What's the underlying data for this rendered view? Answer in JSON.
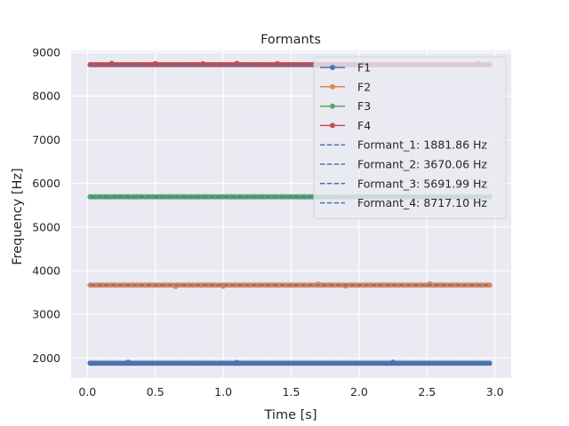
{
  "chart_data": {
    "type": "line",
    "title": "Formants",
    "xlabel": "Time [s]",
    "ylabel": "Frequency [Hz]",
    "xlim": [
      -0.12,
      3.12
    ],
    "ylim": [
      1540,
      9040
    ],
    "xticks": [
      0.0,
      0.5,
      1.0,
      1.5,
      2.0,
      2.5,
      3.0
    ],
    "xtick_labels": [
      "0.0",
      "0.5",
      "1.0",
      "1.5",
      "2.0",
      "2.5",
      "3.0"
    ],
    "yticks": [
      2000,
      3000,
      4000,
      5000,
      6000,
      7000,
      8000,
      9000
    ],
    "ytick_labels": [
      "2000",
      "3000",
      "4000",
      "5000",
      "6000",
      "7000",
      "8000",
      "9000"
    ],
    "grid": true,
    "legend_position": "upper right",
    "x_range": [
      0.02,
      2.97
    ],
    "point_spacing": 0.02,
    "series": [
      {
        "name": "F1",
        "color": "#4c72b0",
        "mean": 1881.86,
        "outliers": [
          [
            0.3,
            1900
          ],
          [
            1.1,
            1895
          ],
          [
            2.25,
            1902
          ]
        ]
      },
      {
        "name": "F2",
        "color": "#dd8452",
        "mean": 3670.06,
        "outliers": [
          [
            0.65,
            3640
          ],
          [
            1.0,
            3645
          ],
          [
            1.7,
            3688
          ],
          [
            1.9,
            3650
          ],
          [
            2.52,
            3695
          ]
        ]
      },
      {
        "name": "F3",
        "color": "#55a868",
        "mean": 5691.99,
        "outliers": []
      },
      {
        "name": "F4",
        "color": "#c44e52",
        "mean": 8717.1,
        "outliers": [
          [
            0.18,
            8745
          ],
          [
            0.5,
            8742
          ],
          [
            0.85,
            8738
          ],
          [
            1.1,
            8745
          ],
          [
            1.4,
            8740
          ],
          [
            2.88,
            8738
          ]
        ]
      }
    ],
    "reference_lines": [
      {
        "label": "Formant_1: 1881.86 Hz",
        "value": 1881.86,
        "color": "#4c72b0",
        "style": "dashed"
      },
      {
        "label": "Formant_2: 3670.06 Hz",
        "value": 3670.06,
        "color": "#4c72b0",
        "style": "dashed"
      },
      {
        "label": "Formant_3: 5691.99 Hz",
        "value": 5691.99,
        "color": "#4c72b0",
        "style": "dashed"
      },
      {
        "label": "Formant_4: 8717.10 Hz",
        "value": 8717.1,
        "color": "#4c72b0",
        "style": "dashed"
      }
    ]
  }
}
